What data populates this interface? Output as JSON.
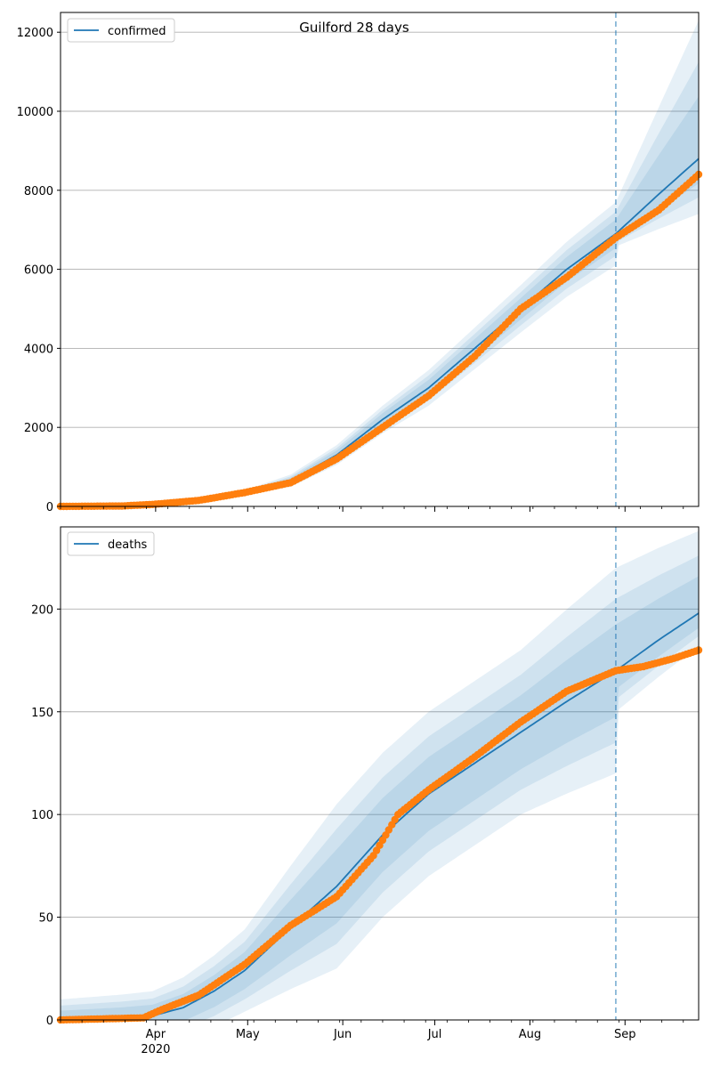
{
  "title": "Guilford 28 days",
  "colors": {
    "model": "#1f77b4",
    "observed": "#ff7f0e",
    "band": "#1f77b4",
    "grid": "#b0b0b0",
    "forecast_line": "#1f77b4"
  },
  "x_ticks": [
    {
      "label": "Apr",
      "sub": "2020",
      "day": 31
    },
    {
      "label": "May",
      "sub": "",
      "day": 61
    },
    {
      "label": "Jun",
      "sub": "",
      "day": 92
    },
    {
      "label": "Jul",
      "sub": "",
      "day": 122
    },
    {
      "label": "Aug",
      "sub": "",
      "day": 153
    },
    {
      "label": "Sep",
      "sub": "",
      "day": 184
    }
  ],
  "chart_data": [
    {
      "type": "line",
      "series_label": "confirmed",
      "x_start_date": "2020-03-01",
      "x_range_days": [
        0,
        208
      ],
      "forecast_start_day": 181,
      "ylim": [
        0,
        12500
      ],
      "yticks": [
        0,
        2000,
        4000,
        6000,
        8000,
        10000,
        12000
      ],
      "legend_position": "upper left",
      "grid": "horizontal",
      "model_anchors": [
        [
          0,
          0
        ],
        [
          15,
          10
        ],
        [
          30,
          50
        ],
        [
          45,
          150
        ],
        [
          60,
          350
        ],
        [
          75,
          650
        ],
        [
          90,
          1300
        ],
        [
          105,
          2200
        ],
        [
          120,
          3000
        ],
        [
          135,
          4000
        ],
        [
          150,
          5000
        ],
        [
          165,
          6000
        ],
        [
          181,
          6900
        ],
        [
          195,
          7900
        ],
        [
          208,
          8800
        ]
      ],
      "band_widths": [
        [
          0,
          0
        ],
        [
          30,
          20
        ],
        [
          60,
          60
        ],
        [
          90,
          250
        ],
        [
          120,
          450
        ],
        [
          150,
          600
        ],
        [
          181,
          800
        ],
        [
          208,
          3500
        ]
      ],
      "observed_anchors": [
        [
          0,
          0
        ],
        [
          20,
          10
        ],
        [
          30,
          50
        ],
        [
          45,
          150
        ],
        [
          60,
          350
        ],
        [
          75,
          600
        ],
        [
          90,
          1200
        ],
        [
          105,
          2000
        ],
        [
          120,
          2800
        ],
        [
          135,
          3800
        ],
        [
          150,
          5000
        ],
        [
          165,
          5800
        ],
        [
          181,
          6800
        ],
        [
          195,
          7500
        ],
        [
          208,
          8400
        ]
      ]
    },
    {
      "type": "line",
      "series_label": "deaths",
      "x_start_date": "2020-03-01",
      "x_range_days": [
        0,
        208
      ],
      "forecast_start_day": 181,
      "ylim": [
        0,
        240
      ],
      "yticks": [
        0,
        50,
        100,
        150,
        200
      ],
      "legend_position": "upper left",
      "grid": "horizontal",
      "model_anchors": [
        [
          0,
          0
        ],
        [
          20,
          1
        ],
        [
          30,
          2
        ],
        [
          40,
          6
        ],
        [
          50,
          14
        ],
        [
          60,
          24
        ],
        [
          75,
          45
        ],
        [
          90,
          65
        ],
        [
          105,
          90
        ],
        [
          120,
          110
        ],
        [
          135,
          125
        ],
        [
          150,
          140
        ],
        [
          165,
          155
        ],
        [
          181,
          170
        ],
        [
          195,
          185
        ],
        [
          208,
          198
        ]
      ],
      "band_widths": [
        [
          0,
          10
        ],
        [
          30,
          12
        ],
        [
          60,
          20
        ],
        [
          90,
          40
        ],
        [
          120,
          40
        ],
        [
          150,
          40
        ],
        [
          181,
          50
        ],
        [
          208,
          40
        ]
      ],
      "observed_anchors": [
        [
          0,
          0
        ],
        [
          27,
          1
        ],
        [
          33,
          5
        ],
        [
          45,
          12
        ],
        [
          60,
          27
        ],
        [
          75,
          46
        ],
        [
          90,
          60
        ],
        [
          102,
          80
        ],
        [
          110,
          100
        ],
        [
          120,
          112
        ],
        [
          135,
          128
        ],
        [
          150,
          145
        ],
        [
          165,
          160
        ],
        [
          181,
          170
        ],
        [
          190,
          172
        ],
        [
          200,
          176
        ],
        [
          208,
          180
        ]
      ]
    }
  ]
}
